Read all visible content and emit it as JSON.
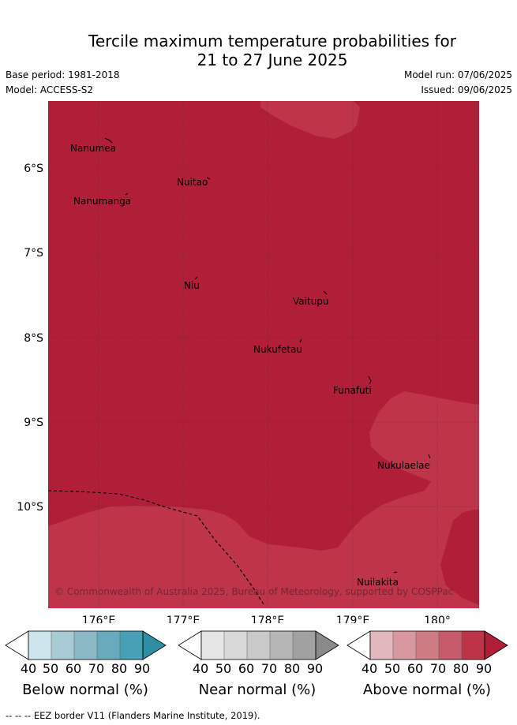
{
  "header": {
    "title_line1": "Tercile maximum temperature probabilities for",
    "title_line2": "21 to 27 June 2025",
    "base_period": "Base period: 1981-2018",
    "model": "Model: ACCESS-S2",
    "model_run": "Model run: 07/06/2025",
    "issued": "Issued: 09/06/2025"
  },
  "map": {
    "lat_labels": [
      "6°S",
      "7°S",
      "8°S",
      "9°S",
      "10°S"
    ],
    "lon_labels": [
      "176°E",
      "177°E",
      "178°E",
      "179°E",
      "180°"
    ],
    "islands": [
      {
        "name": "Nanumea"
      },
      {
        "name": "Nuitao"
      },
      {
        "name": "Nanumanga"
      },
      {
        "name": "Niu"
      },
      {
        "name": "Vaitupu"
      },
      {
        "name": "Nukufetau"
      },
      {
        "name": "Funafuti"
      },
      {
        "name": "Nukulaelae"
      },
      {
        "name": "Nuilakita"
      }
    ],
    "copyright": "© Commonwealth of Australia 2025, Bureau of Meteorology, supported by COSPPac",
    "colors": {
      "dominant": "#b11e38",
      "lighter": "#be3449",
      "grid": "#333333"
    }
  },
  "legend": {
    "ticks": [
      "40",
      "50",
      "60",
      "70",
      "80",
      "90"
    ],
    "bars": [
      {
        "label": "Below normal (%)",
        "colors": [
          "#ffffff",
          "#cde4ea",
          "#a9cbd3",
          "#8bbac6",
          "#68abbd",
          "#47a0b3",
          "#2e8ea3"
        ]
      },
      {
        "label": "Near normal (%)",
        "colors": [
          "#ffffff",
          "#e6e6e6",
          "#d8d8d8",
          "#c9c9c9",
          "#b6b6b6",
          "#a1a1a1",
          "#8a8a8a"
        ]
      },
      {
        "label": "Above normal (%)",
        "colors": [
          "#ffffff",
          "#e2b7be",
          "#d8989f",
          "#cf7b84",
          "#c65b69",
          "#bd3449",
          "#b11e38"
        ]
      }
    ]
  },
  "footer": {
    "text": "--  --  -- EEZ border V11 (Flanders Marine Institute, 2019)."
  }
}
